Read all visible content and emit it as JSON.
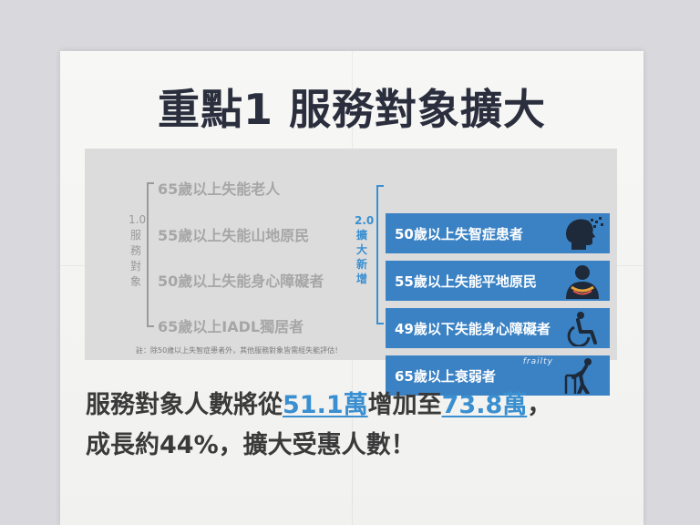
{
  "title": "重點1 服務對象擴大",
  "left_group": {
    "label": [
      "1.0",
      "服",
      "務",
      "對",
      "象"
    ],
    "items": [
      "65歲以上失能老人",
      "55歲以上失能山地原民",
      "50歲以上失能身心障礙者",
      "65歲以上IADL獨居者"
    ],
    "note": "註：除50歲以上失智症患者外，其他服務對象皆需經失能評估！"
  },
  "right_group": {
    "label": [
      "2.0",
      "擴",
      "大",
      "新",
      "增"
    ],
    "items": [
      {
        "text": "50歲以上失智症患者",
        "icon": "dementia-head-icon"
      },
      {
        "text": "55歲以上失能平地原民",
        "icon": "indigenous-person-icon"
      },
      {
        "text": "49歲以下失能身心障礙者",
        "icon": "wheelchair-icon"
      },
      {
        "text": "65歲以上衰弱者",
        "icon": "walker-elder-icon",
        "tag": "frailty"
      }
    ]
  },
  "summary": {
    "line1_a": "服務對象人數將從",
    "from_value": "51.1萬",
    "line1_b": "增加至",
    "to_value": "73.8萬",
    "line1_c": "，",
    "line2": "成長約44%，擴大受惠人數！"
  },
  "colors": {
    "title": "#2a2e3d",
    "accent_blue": "#3b82c4",
    "highlight_blue": "#3a8fd1",
    "muted_grey": "#a6a6a6"
  }
}
